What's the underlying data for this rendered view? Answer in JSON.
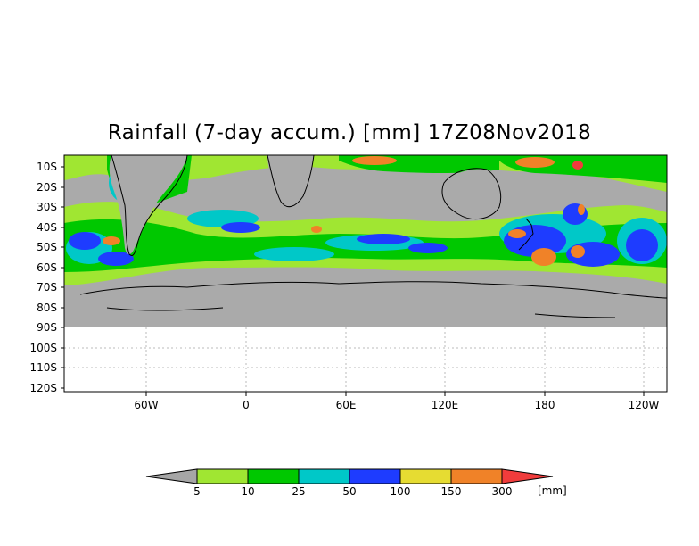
{
  "title": "Rainfall (7-day accum.) [mm] 17Z08Nov2018",
  "map": {
    "lat_ticks": [
      "10S",
      "20S",
      "30S",
      "40S",
      "50S",
      "60S",
      "70S",
      "80S",
      "90S",
      "100S",
      "110S",
      "120S"
    ],
    "lon_ticks": [
      "60W",
      "0",
      "60E",
      "120E",
      "180",
      "120W"
    ],
    "land_mask_color": "#aaaaaa"
  },
  "colorbar": {
    "levels": [
      "5",
      "10",
      "25",
      "50",
      "100",
      "150",
      "300"
    ],
    "unit": "[mm]",
    "colors": [
      "#a6a6a6",
      "#a0e632",
      "#00c800",
      "#00c8c8",
      "#1e3cff",
      "#e6dc32",
      "#f08228",
      "#f03c3c"
    ]
  }
}
